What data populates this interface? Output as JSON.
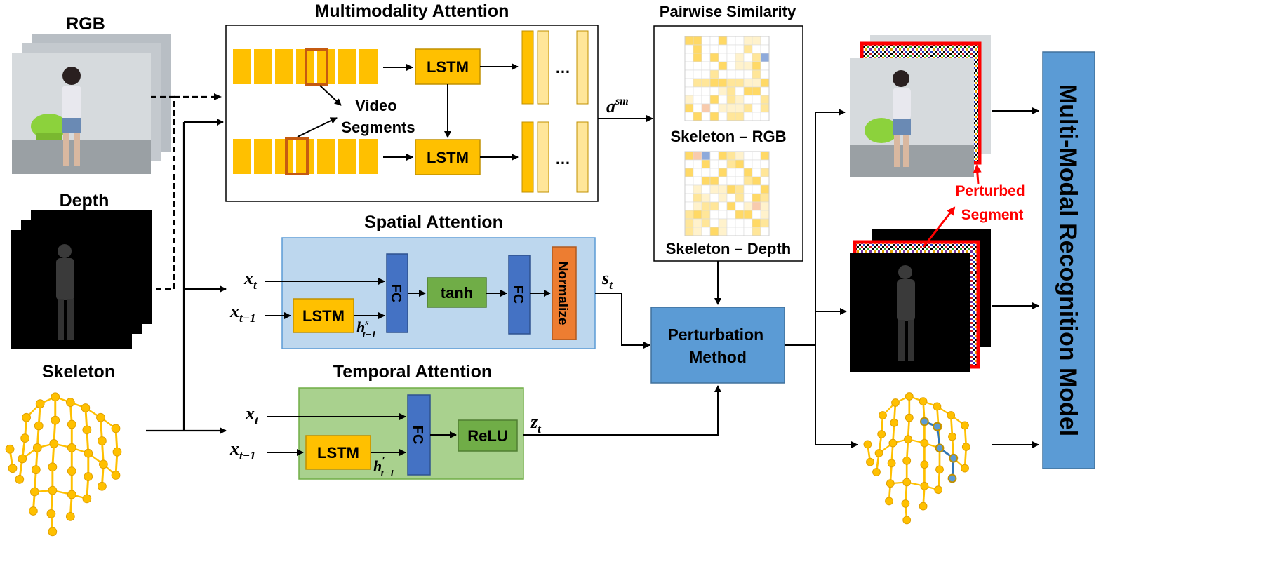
{
  "titles": {
    "rgb": "RGB",
    "depth": "Depth",
    "skeleton": "Skeleton",
    "multimodality_attention": "Multimodality Attention",
    "pairwise_similarity": "Pairwise Similarity",
    "spatial_attention": "Spatial Attention",
    "temporal_attention": "Temporal Attention"
  },
  "multimodality": {
    "lstm_top": "LSTM",
    "lstm_bottom": "LSTM",
    "dots_top": "…",
    "dots_bottom": "…",
    "video_segments_line1": "Video",
    "video_segments_line2": "Segments"
  },
  "similarity": {
    "label_rgb": "Skeleton – RGB",
    "label_depth": "Skeleton – Depth",
    "a_base": "a",
    "a_sup": "sm"
  },
  "spatial": {
    "x_t": "x",
    "x_t_sub": "t",
    "x_prev": "x",
    "x_prev_sub": "t−1",
    "lstm": "LSTM",
    "fc1": "FC",
    "tanh": "tanh",
    "fc2": "FC",
    "normalize": "Normalize",
    "h_base": "h",
    "h_sup": "s",
    "h_sub": "t−1",
    "s_base": "s",
    "s_sub": "t"
  },
  "temporal": {
    "x_t": "x",
    "x_t_sub": "t",
    "x_prev": "x",
    "x_prev_sub": "t−1",
    "lstm": "LSTM",
    "fc": "FC",
    "relu": "ReLU",
    "h_base": "h",
    "h_sup": "′",
    "h_sub": "t−1",
    "z_base": "z",
    "z_sub": "t"
  },
  "perturbation": {
    "line1": "Perturbation",
    "line2": "Method"
  },
  "perturbed_segment": {
    "line1": "Perturbed",
    "line2": "Segment"
  },
  "model": {
    "label": "Multi-Modal Recognition Model"
  },
  "colors": {
    "segment_yellow": "#ffc000",
    "segment_light": "#ffe699",
    "highlight_orange": "#c55a11",
    "spatial_bg": "#bdd7ee",
    "temporal_bg": "#a9d18e",
    "fc_blue": "#4472c4",
    "green_box": "#70ad47",
    "normalize_orange": "#ed7d31",
    "perturb_blue": "#5b9bd5",
    "perturb_red": "#ff0000"
  }
}
